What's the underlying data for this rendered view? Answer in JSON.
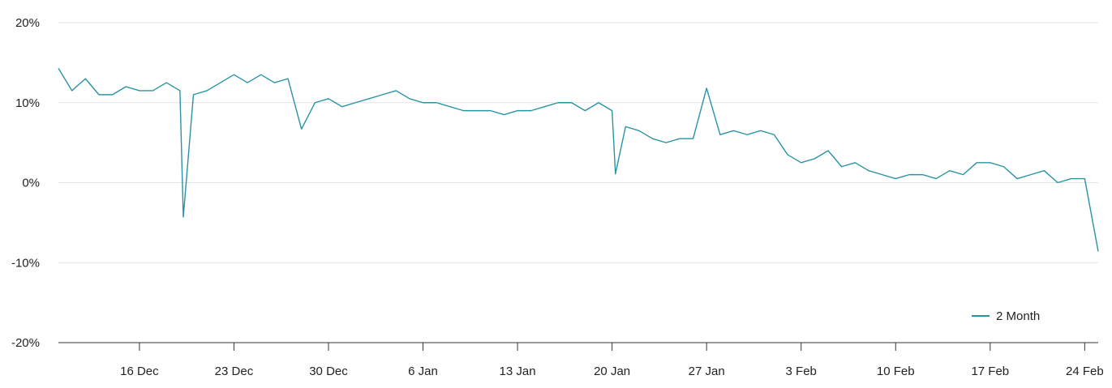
{
  "chart_data": {
    "type": "line",
    "title": "",
    "xlabel": "",
    "ylabel": "",
    "y_ticks": [
      "20%",
      "10%",
      "0%",
      "-10%",
      "-20%"
    ],
    "ylim": [
      -20,
      20
    ],
    "x_ticks": [
      "16 Dec",
      "23 Dec",
      "30 Dec",
      "6 Jan",
      "13 Jan",
      "20 Jan",
      "27 Jan",
      "3 Feb",
      "10 Feb",
      "17 Feb",
      "24 Feb"
    ],
    "grid": true,
    "legend_position": "bottom-right",
    "series": [
      {
        "name": "2 Month",
        "color": "#2a93a3",
        "x": [
          "10 Dec",
          "11 Dec",
          "12 Dec",
          "13 Dec",
          "14 Dec",
          "15 Dec",
          "16 Dec",
          "17 Dec",
          "18 Dec",
          "19 Dec",
          "19 Dec",
          "20 Dec",
          "21 Dec",
          "22 Dec",
          "23 Dec",
          "24 Dec",
          "25 Dec",
          "26 Dec",
          "27 Dec",
          "28 Dec",
          "29 Dec",
          "30 Dec",
          "31 Dec",
          "1 Jan",
          "2 Jan",
          "3 Jan",
          "4 Jan",
          "5 Jan",
          "6 Jan",
          "7 Jan",
          "8 Jan",
          "9 Jan",
          "10 Jan",
          "11 Jan",
          "12 Jan",
          "13 Jan",
          "14 Jan",
          "15 Jan",
          "16 Jan",
          "17 Jan",
          "18 Jan",
          "19 Jan",
          "20 Jan",
          "20 Jan",
          "21 Jan",
          "22 Jan",
          "23 Jan",
          "24 Jan",
          "25 Jan",
          "26 Jan",
          "27 Jan",
          "28 Jan",
          "29 Jan",
          "30 Jan",
          "31 Jan",
          "1 Feb",
          "2 Feb",
          "3 Feb",
          "4 Feb",
          "5 Feb",
          "6 Feb",
          "7 Feb",
          "8 Feb",
          "9 Feb",
          "10 Feb",
          "11 Feb",
          "12 Feb",
          "13 Feb",
          "14 Feb",
          "15 Feb",
          "16 Feb",
          "17 Feb",
          "18 Feb",
          "19 Feb",
          "20 Feb",
          "21 Feb",
          "22 Feb",
          "23 Feb",
          "24 Feb",
          "25 Feb"
        ],
        "values": [
          14.3,
          11.5,
          13.0,
          11.0,
          11.0,
          12.0,
          11.5,
          11.5,
          12.5,
          11.5,
          -4.3,
          11.0,
          11.5,
          12.5,
          13.5,
          12.5,
          13.5,
          12.5,
          13.0,
          6.7,
          10.0,
          10.5,
          9.5,
          10.0,
          10.5,
          11.0,
          11.5,
          10.5,
          10.0,
          10.0,
          9.5,
          9.0,
          9.0,
          9.0,
          8.5,
          9.0,
          9.0,
          9.5,
          10.0,
          10.0,
          9.0,
          10.0,
          9.0,
          1.1,
          7.0,
          6.5,
          5.5,
          5.0,
          5.5,
          5.5,
          11.8,
          6.0,
          6.5,
          6.0,
          6.5,
          6.0,
          3.5,
          2.5,
          3.0,
          4.0,
          2.0,
          2.5,
          1.5,
          1.0,
          0.5,
          1.0,
          1.0,
          0.5,
          1.5,
          1.0,
          2.5,
          2.5,
          2.0,
          0.5,
          1.0,
          1.5,
          0.0,
          0.5,
          0.5,
          -8.6
        ]
      }
    ]
  }
}
